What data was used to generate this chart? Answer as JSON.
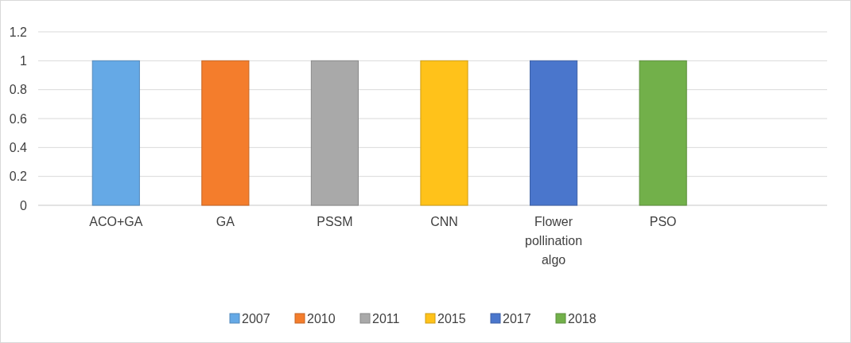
{
  "chart_data": {
    "type": "bar",
    "stacked": true,
    "categories": [
      "ACO+GA",
      "GA",
      "PSSM",
      "CNN",
      "Flower pollination algo",
      "PSO",
      null
    ],
    "series": [
      {
        "name": "2007",
        "color": "#65a9e6",
        "values": [
          1,
          null,
          null,
          null,
          null,
          null,
          null
        ]
      },
      {
        "name": "2010",
        "color": "#f47d2c",
        "values": [
          null,
          1,
          null,
          null,
          null,
          null,
          null
        ]
      },
      {
        "name": "2011",
        "color": "#a9a9a9",
        "values": [
          null,
          null,
          1,
          null,
          null,
          null,
          null
        ]
      },
      {
        "name": "2015",
        "color": "#ffc21a",
        "values": [
          null,
          null,
          null,
          1,
          null,
          null,
          null
        ]
      },
      {
        "name": "2017",
        "color": "#4a76cc",
        "values": [
          null,
          null,
          null,
          null,
          1,
          null,
          null
        ]
      },
      {
        "name": "2018",
        "color": "#72b04a",
        "values": [
          null,
          null,
          null,
          null,
          null,
          1,
          null
        ]
      }
    ],
    "ylim": [
      0,
      1.2
    ],
    "yticks": [
      0,
      0.2,
      0.4,
      0.6,
      0.8,
      1,
      1.2
    ],
    "grid": "y",
    "legend": "bottom"
  }
}
